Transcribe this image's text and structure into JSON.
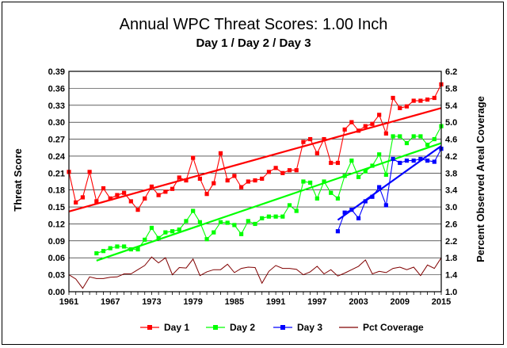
{
  "chart_data": {
    "type": "line",
    "title": "Annual WPC Threat Scores:  1.00 Inch",
    "subtitle": "Day 1 / Day 2 / Day 3",
    "ylabel": "Threat Score",
    "y2label": "Percent Observed Areal Coverage",
    "xlim": [
      1961,
      2015
    ],
    "ylim": [
      0.0,
      0.39
    ],
    "y2lim": [
      1.0,
      6.2
    ],
    "x_ticks": [
      "1961",
      "1967",
      "1973",
      "1979",
      "1985",
      "1991",
      "1997",
      "2003",
      "2009",
      "2015"
    ],
    "y_ticks": [
      "0.00",
      "0.03",
      "0.06",
      "0.09",
      "0.12",
      "0.15",
      "0.18",
      "0.21",
      "0.24",
      "0.27",
      "0.30",
      "0.33",
      "0.36",
      "0.39"
    ],
    "y2_ticks": [
      "1.0",
      "1.4",
      "1.8",
      "2.2",
      "2.6",
      "3.0",
      "3.4",
      "3.8",
      "4.2",
      "4.6",
      "5.0",
      "5.4",
      "5.8",
      "6.2"
    ],
    "grid": true,
    "legend_position": "bottom",
    "series": [
      {
        "name": "Day 1",
        "color": "#ff0000",
        "marker": "square",
        "axis": "left",
        "x": [
          1961,
          1962,
          1963,
          1964,
          1965,
          1966,
          1967,
          1968,
          1969,
          1970,
          1971,
          1972,
          1973,
          1974,
          1975,
          1976,
          1977,
          1978,
          1979,
          1980,
          1981,
          1982,
          1983,
          1984,
          1985,
          1986,
          1987,
          1988,
          1989,
          1990,
          1991,
          1992,
          1993,
          1994,
          1995,
          1996,
          1997,
          1998,
          1999,
          2000,
          2001,
          2002,
          2003,
          2004,
          2005,
          2006,
          2007,
          2008,
          2009,
          2010,
          2011,
          2012,
          2013,
          2014,
          2015
        ],
        "y": [
          0.212,
          0.158,
          0.167,
          0.212,
          0.16,
          0.183,
          0.165,
          0.171,
          0.175,
          0.16,
          0.145,
          0.165,
          0.186,
          0.171,
          0.177,
          0.182,
          0.202,
          0.197,
          0.237,
          0.2,
          0.173,
          0.192,
          0.245,
          0.197,
          0.205,
          0.185,
          0.195,
          0.197,
          0.2,
          0.212,
          0.219,
          0.21,
          0.215,
          0.215,
          0.265,
          0.27,
          0.245,
          0.27,
          0.228,
          0.228,
          0.287,
          0.3,
          0.285,
          0.293,
          0.297,
          0.313,
          0.28,
          0.343,
          0.325,
          0.328,
          0.338,
          0.338,
          0.34,
          0.343,
          0.367
        ]
      },
      {
        "name": "Day 2",
        "color": "#00ff00",
        "marker": "square",
        "axis": "left",
        "x": [
          1965,
          1966,
          1967,
          1968,
          1969,
          1970,
          1971,
          1972,
          1973,
          1974,
          1975,
          1976,
          1977,
          1978,
          1979,
          1980,
          1981,
          1982,
          1983,
          1984,
          1985,
          1986,
          1987,
          1988,
          1989,
          1990,
          1991,
          1992,
          1993,
          1994,
          1995,
          1996,
          1997,
          1998,
          1999,
          2000,
          2001,
          2002,
          2003,
          2004,
          2005,
          2006,
          2007,
          2008,
          2009,
          2010,
          2011,
          2012,
          2013,
          2014,
          2015
        ],
        "y": [
          0.068,
          0.072,
          0.077,
          0.08,
          0.08,
          0.075,
          0.075,
          0.092,
          0.113,
          0.095,
          0.105,
          0.107,
          0.11,
          0.125,
          0.143,
          0.123,
          0.093,
          0.105,
          0.123,
          0.122,
          0.118,
          0.102,
          0.125,
          0.12,
          0.13,
          0.133,
          0.133,
          0.133,
          0.153,
          0.143,
          0.195,
          0.193,
          0.165,
          0.195,
          0.175,
          0.165,
          0.205,
          0.232,
          0.203,
          0.213,
          0.223,
          0.243,
          0.207,
          0.275,
          0.275,
          0.263,
          0.275,
          0.275,
          0.26,
          0.27,
          0.293
        ]
      },
      {
        "name": "Day 3",
        "color": "#0000ff",
        "marker": "square",
        "axis": "left",
        "x": [
          2000,
          2001,
          2002,
          2003,
          2004,
          2005,
          2006,
          2007,
          2008,
          2009,
          2010,
          2011,
          2012,
          2013,
          2014,
          2015
        ],
        "y": [
          0.107,
          0.14,
          0.145,
          0.13,
          0.16,
          0.168,
          0.185,
          0.153,
          0.235,
          0.228,
          0.232,
          0.232,
          0.235,
          0.232,
          0.23,
          0.253
        ]
      },
      {
        "name": "Pct Coverage",
        "color": "#800000",
        "marker": "none",
        "axis": "right",
        "x": [
          1961,
          1962,
          1963,
          1964,
          1965,
          1966,
          1967,
          1968,
          1969,
          1970,
          1971,
          1972,
          1973,
          1974,
          1975,
          1976,
          1977,
          1978,
          1979,
          1980,
          1981,
          1982,
          1983,
          1984,
          1985,
          1986,
          1987,
          1988,
          1989,
          1990,
          1991,
          1992,
          1993,
          1994,
          1995,
          1996,
          1997,
          1998,
          1999,
          2000,
          2001,
          2002,
          2003,
          2004,
          2005,
          2006,
          2007,
          2008,
          2009,
          2010,
          2011,
          2012,
          2013,
          2014,
          2015
        ],
        "y": [
          1.4,
          1.3,
          1.08,
          1.35,
          1.31,
          1.31,
          1.34,
          1.35,
          1.42,
          1.42,
          1.52,
          1.62,
          1.82,
          1.68,
          1.8,
          1.4,
          1.57,
          1.56,
          1.77,
          1.38,
          1.47,
          1.52,
          1.52,
          1.65,
          1.45,
          1.55,
          1.58,
          1.57,
          1.2,
          1.48,
          1.62,
          1.55,
          1.55,
          1.53,
          1.4,
          1.47,
          1.6,
          1.42,
          1.52,
          1.37,
          1.44,
          1.52,
          1.6,
          1.75,
          1.42,
          1.48,
          1.45,
          1.55,
          1.58,
          1.52,
          1.58,
          1.38,
          1.63,
          1.55,
          1.8
        ]
      }
    ],
    "trendlines": [
      {
        "series": "Day 1",
        "color": "#ff0000",
        "x": [
          1961,
          2015
        ],
        "y": [
          0.142,
          0.325
        ]
      },
      {
        "series": "Day 2",
        "color": "#00ff00",
        "x": [
          1965,
          2015
        ],
        "y": [
          0.055,
          0.263
        ]
      },
      {
        "series": "Day 3",
        "color": "#0000ff",
        "x": [
          2000,
          2015
        ],
        "y": [
          0.127,
          0.258
        ]
      }
    ]
  }
}
